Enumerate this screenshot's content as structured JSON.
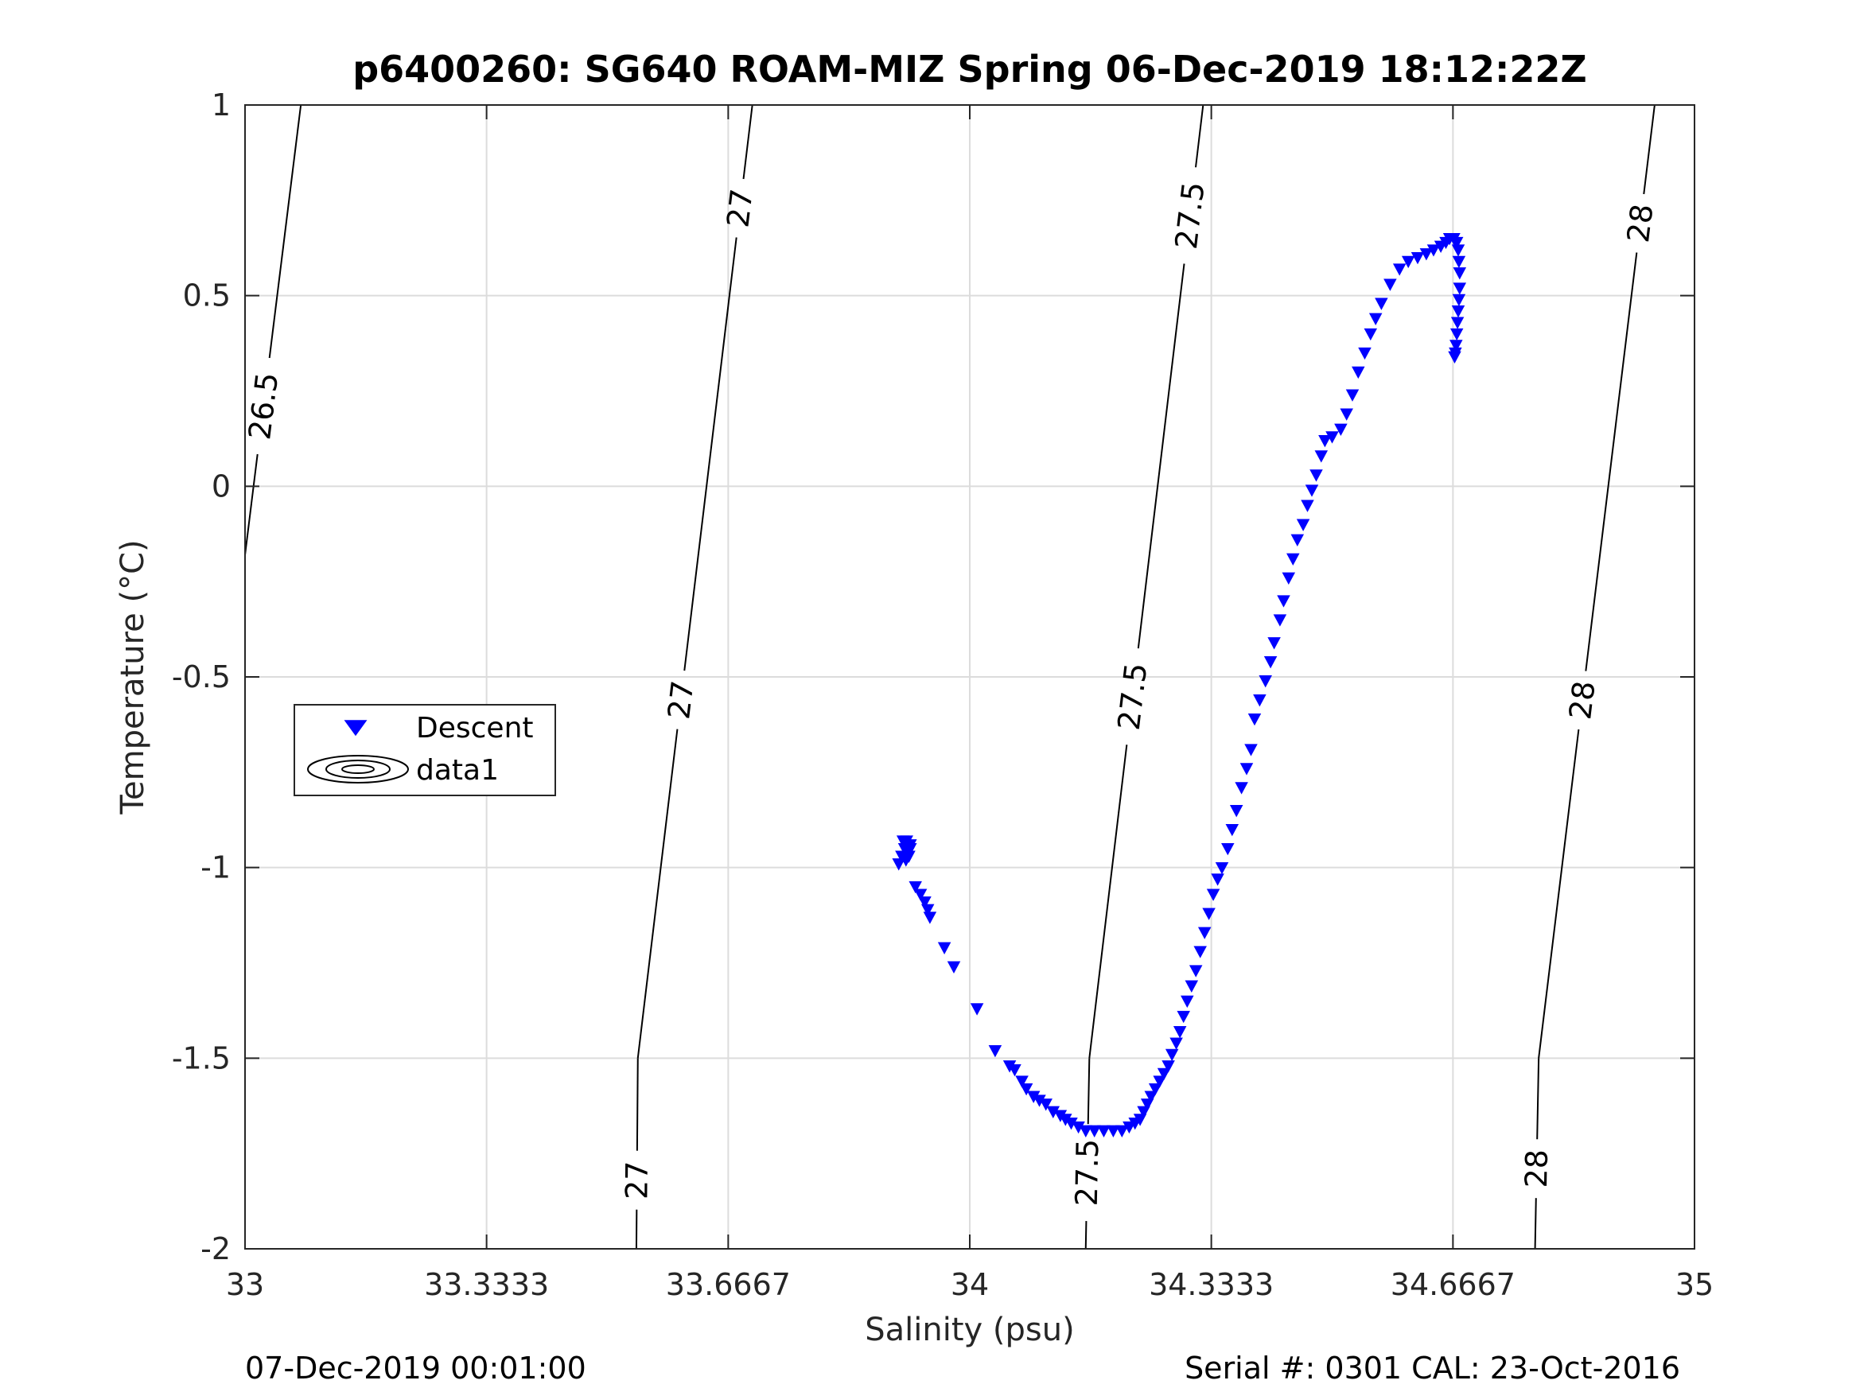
{
  "chart_data": {
    "type": "scatter",
    "title": "p6400260: SG640 ROAM-MIZ Spring 06-Dec-2019 18:12:22Z",
    "xlabel": "Salinity (psu)",
    "ylabel": "Temperature (°C)",
    "xlim": [
      33,
      35
    ],
    "ylim": [
      -2,
      1
    ],
    "x_ticks": [
      33,
      33.3333,
      33.6667,
      34,
      34.3333,
      34.6667,
      35
    ],
    "x_tick_labels": [
      "33",
      "33.3333",
      "33.6667",
      "34",
      "34.3333",
      "34.6667",
      "35"
    ],
    "y_ticks": [
      -2,
      -1.5,
      -1,
      -0.5,
      0,
      0.5,
      1
    ],
    "y_tick_labels": [
      "-2",
      "-1.5",
      "-1",
      "-0.5",
      "0",
      "0.5",
      "1"
    ],
    "grid": true,
    "legend": {
      "placement": "middle-left",
      "entries": [
        {
          "label": "Descent",
          "marker": "triangle-down",
          "color": "#0000ff"
        },
        {
          "label": "data1",
          "marker": "contour-ellipses",
          "color": "#000000"
        }
      ]
    },
    "series": [
      {
        "name": "Descent",
        "marker": "triangle-down",
        "color": "#0000ff",
        "points": [
          [
            33.908,
            -0.93
          ],
          [
            33.913,
            -0.93
          ],
          [
            33.918,
            -0.94
          ],
          [
            33.91,
            -0.95
          ],
          [
            33.915,
            -0.96
          ],
          [
            33.906,
            -0.97
          ],
          [
            33.902,
            -0.99
          ],
          [
            33.912,
            -0.98
          ],
          [
            33.918,
            -0.95
          ],
          [
            33.916,
            -0.97
          ],
          [
            33.925,
            -1.05
          ],
          [
            33.932,
            -1.07
          ],
          [
            33.938,
            -1.09
          ],
          [
            33.942,
            -1.11
          ],
          [
            33.945,
            -1.13
          ],
          [
            33.965,
            -1.21
          ],
          [
            33.978,
            -1.26
          ],
          [
            34.01,
            -1.37
          ],
          [
            34.035,
            -1.48
          ],
          [
            34.055,
            -1.52
          ],
          [
            34.062,
            -1.53
          ],
          [
            34.072,
            -1.56
          ],
          [
            34.078,
            -1.58
          ],
          [
            34.088,
            -1.6
          ],
          [
            34.096,
            -1.61
          ],
          [
            34.105,
            -1.62
          ],
          [
            34.115,
            -1.64
          ],
          [
            34.125,
            -1.65
          ],
          [
            34.132,
            -1.66
          ],
          [
            34.14,
            -1.67
          ],
          [
            34.15,
            -1.68
          ],
          [
            34.16,
            -1.69
          ],
          [
            34.172,
            -1.69
          ],
          [
            34.185,
            -1.69
          ],
          [
            34.198,
            -1.69
          ],
          [
            34.21,
            -1.69
          ],
          [
            34.22,
            -1.68
          ],
          [
            34.228,
            -1.67
          ],
          [
            34.235,
            -1.66
          ],
          [
            34.24,
            -1.64
          ],
          [
            34.245,
            -1.62
          ],
          [
            34.25,
            -1.6
          ],
          [
            34.256,
            -1.58
          ],
          [
            34.262,
            -1.56
          ],
          [
            34.268,
            -1.54
          ],
          [
            34.274,
            -1.52
          ],
          [
            34.279,
            -1.49
          ],
          [
            34.285,
            -1.46
          ],
          [
            34.29,
            -1.43
          ],
          [
            34.295,
            -1.39
          ],
          [
            34.3,
            -1.35
          ],
          [
            34.306,
            -1.31
          ],
          [
            34.312,
            -1.27
          ],
          [
            34.318,
            -1.22
          ],
          [
            34.324,
            -1.17
          ],
          [
            34.33,
            -1.12
          ],
          [
            34.336,
            -1.07
          ],
          [
            34.342,
            -1.03
          ],
          [
            34.348,
            -1.0
          ],
          [
            34.356,
            -0.95
          ],
          [
            34.362,
            -0.9
          ],
          [
            34.368,
            -0.85
          ],
          [
            34.375,
            -0.79
          ],
          [
            34.382,
            -0.74
          ],
          [
            34.388,
            -0.69
          ],
          [
            34.393,
            -0.61
          ],
          [
            34.4,
            -0.56
          ],
          [
            34.408,
            -0.51
          ],
          [
            34.415,
            -0.46
          ],
          [
            34.42,
            -0.41
          ],
          [
            34.428,
            -0.35
          ],
          [
            34.433,
            -0.3
          ],
          [
            34.44,
            -0.24
          ],
          [
            34.446,
            -0.19
          ],
          [
            34.452,
            -0.14
          ],
          [
            34.46,
            -0.1
          ],
          [
            34.466,
            -0.05
          ],
          [
            34.472,
            -0.01
          ],
          [
            34.478,
            0.03
          ],
          [
            34.485,
            0.08
          ],
          [
            34.49,
            0.12
          ],
          [
            34.5,
            0.13
          ],
          [
            34.512,
            0.15
          ],
          [
            34.52,
            0.19
          ],
          [
            34.528,
            0.24
          ],
          [
            34.536,
            0.3
          ],
          [
            34.545,
            0.35
          ],
          [
            34.553,
            0.4
          ],
          [
            34.56,
            0.44
          ],
          [
            34.568,
            0.48
          ],
          [
            34.58,
            0.53
          ],
          [
            34.593,
            0.57
          ],
          [
            34.605,
            0.59
          ],
          [
            34.618,
            0.6
          ],
          [
            34.63,
            0.61
          ],
          [
            34.64,
            0.62
          ],
          [
            34.65,
            0.63
          ],
          [
            34.657,
            0.64
          ],
          [
            34.662,
            0.65
          ],
          [
            34.668,
            0.65
          ],
          [
            34.672,
            0.64
          ],
          [
            34.674,
            0.62
          ],
          [
            34.675,
            0.59
          ],
          [
            34.676,
            0.56
          ],
          [
            34.676,
            0.52
          ],
          [
            34.675,
            0.49
          ],
          [
            34.674,
            0.46
          ],
          [
            34.673,
            0.43
          ],
          [
            34.672,
            0.4
          ],
          [
            34.671,
            0.37
          ],
          [
            34.67,
            0.35
          ],
          [
            34.669,
            0.34
          ]
        ]
      }
    ],
    "contours": [
      {
        "label": "26.5",
        "points": [
          [
            33.077,
            1.0
          ],
          [
            33.0,
            -0.18
          ]
        ],
        "label_positions": [
          [
            33.027,
            0.21
          ]
        ]
      },
      {
        "label": "27",
        "points": [
          [
            33.7,
            1.0
          ],
          [
            33.542,
            -1.5
          ],
          [
            33.54,
            -2.0
          ]
        ],
        "label_positions": [
          [
            33.68,
            0.73
          ],
          [
            33.6,
            -0.56
          ],
          [
            33.546,
            -1.82
          ]
        ]
      },
      {
        "label": "27.5",
        "points": [
          [
            34.322,
            1.0
          ],
          [
            34.165,
            -1.5
          ],
          [
            34.16,
            -2.0
          ]
        ],
        "label_positions": [
          [
            34.305,
            0.71
          ],
          [
            34.218,
            -0.55
          ],
          [
            34.165,
            -1.8
          ]
        ]
      },
      {
        "label": "28",
        "points": [
          [
            34.945,
            1.0
          ],
          [
            34.785,
            -1.5
          ],
          [
            34.78,
            -2.0
          ]
        ],
        "label_positions": [
          [
            34.924,
            0.69
          ],
          [
            34.84,
            -0.56
          ],
          [
            34.79,
            -1.79
          ]
        ]
      }
    ],
    "footer_left": "07-Dec-2019 00:01:00",
    "footer_right": "Serial #: 0301  CAL: 23-Oct-2016"
  }
}
